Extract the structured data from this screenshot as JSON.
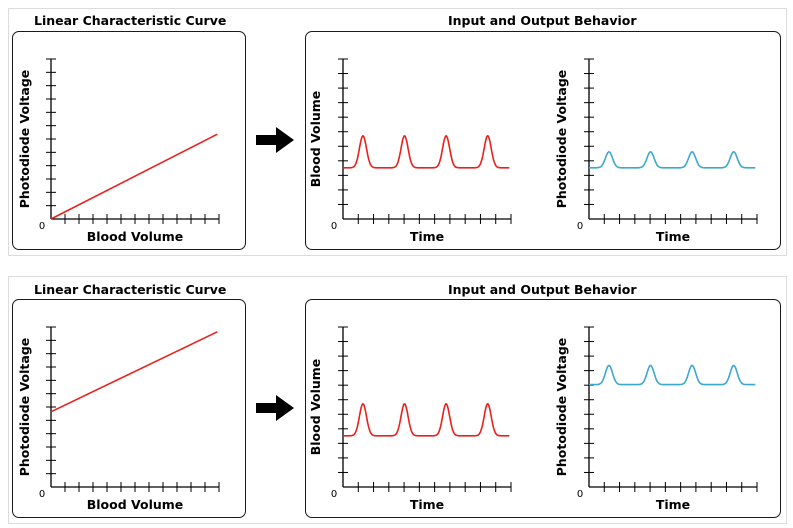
{
  "rows": [
    {
      "curve_title": "Linear Characteristic Curve",
      "io_title": "Input and Output Behavior",
      "curve": {
        "xlabel": "Blood Volume",
        "ylabel": "Photodiode Voltage",
        "origin": "0",
        "line": {
          "intercept": 0.0,
          "slope": 0.53,
          "color": "#e8211c"
        }
      },
      "input_plot": {
        "xlabel": "Time",
        "ylabel": "Blood Volume",
        "origin": "0",
        "signal": {
          "baseline": 0.32,
          "peak_height": 0.2,
          "pulses": 4,
          "color": "#e8211c"
        }
      },
      "output_plot": {
        "xlabel": "Time",
        "ylabel": "Photodiode Voltage",
        "origin": "0",
        "signal": {
          "baseline": 0.32,
          "peak_height": 0.1,
          "pulses": 4,
          "color": "#3ba8cf"
        }
      }
    },
    {
      "curve_title": "Linear Characteristic Curve",
      "io_title": "Input and Output Behavior",
      "curve": {
        "xlabel": "Blood Volume",
        "ylabel": "Photodiode Voltage",
        "origin": "0",
        "line": {
          "intercept": 0.47,
          "slope": 0.5,
          "color": "#e8211c"
        }
      },
      "input_plot": {
        "xlabel": "Time",
        "ylabel": "Blood Volume",
        "origin": "0",
        "signal": {
          "baseline": 0.32,
          "peak_height": 0.2,
          "pulses": 4,
          "color": "#e8211c"
        }
      },
      "output_plot": {
        "xlabel": "Time",
        "ylabel": "Photodiode Voltage",
        "origin": "0",
        "signal": {
          "baseline": 0.64,
          "peak_height": 0.12,
          "pulses": 4,
          "color": "#3ba8cf"
        }
      }
    }
  ],
  "colors": {
    "axis": "#000000",
    "border": "#1a1a1a",
    "arrow": "#000000"
  },
  "icons": {
    "arrow": "right-arrow-icon"
  }
}
